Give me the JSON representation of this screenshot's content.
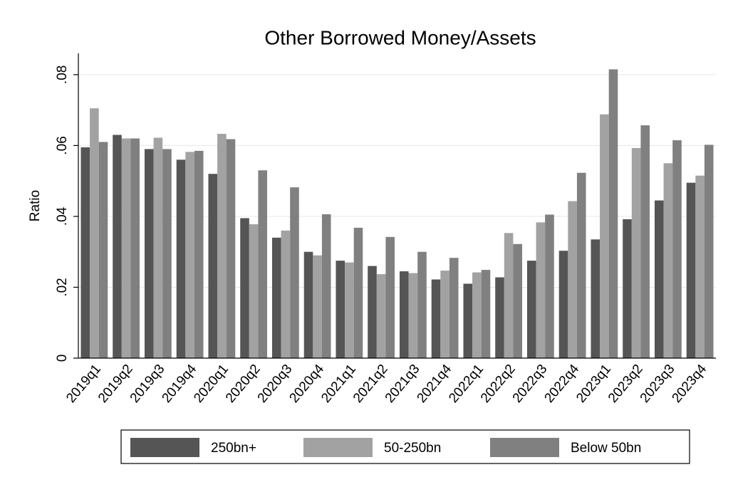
{
  "chart_data": {
    "type": "bar",
    "title": "Other Borrowed Money/Assets",
    "y_label": "Ratio",
    "categories": [
      "2019q1",
      "2019q2",
      "2019q3",
      "2019q4",
      "2020q1",
      "2020q2",
      "2020q3",
      "2020q4",
      "2021q1",
      "2021q2",
      "2021q3",
      "2021q4",
      "2022q1",
      "2022q2",
      "2022q3",
      "2022q4",
      "2023q1",
      "2023q2",
      "2023q3",
      "2023q4"
    ],
    "series": [
      {
        "name": "250bn+",
        "color": "#555555",
        "values": [
          0.0595,
          0.063,
          0.059,
          0.056,
          0.052,
          0.0395,
          0.034,
          0.03,
          0.0275,
          0.026,
          0.0245,
          0.0222,
          0.021,
          0.0228,
          0.0275,
          0.0303,
          0.0335,
          0.0392,
          0.0445,
          0.0495
        ]
      },
      {
        "name": "50-250bn",
        "color": "#a2a2a2",
        "values": [
          0.0705,
          0.062,
          0.0622,
          0.0582,
          0.0633,
          0.0378,
          0.036,
          0.029,
          0.027,
          0.0237,
          0.024,
          0.0247,
          0.0242,
          0.0353,
          0.0383,
          0.0443,
          0.0688,
          0.0593,
          0.055,
          0.0515
        ]
      },
      {
        "name": "Below 50bn",
        "color": "#808080",
        "values": [
          0.061,
          0.062,
          0.059,
          0.0585,
          0.0618,
          0.053,
          0.0482,
          0.0406,
          0.0368,
          0.0342,
          0.03,
          0.0283,
          0.0249,
          0.0322,
          0.0405,
          0.0523,
          0.0815,
          0.0657,
          0.0615,
          0.0602
        ]
      }
    ],
    "ylim": [
      0,
      0.086
    ],
    "yticks": [
      0,
      {
        "value": 0.02,
        "label": ".02"
      },
      {
        "value": 0.04,
        "label": ".04"
      },
      {
        "value": 0.06,
        "label": ".06"
      },
      {
        "value": 0.08,
        "label": ".08"
      }
    ],
    "grid": true,
    "legend": "bottom"
  }
}
